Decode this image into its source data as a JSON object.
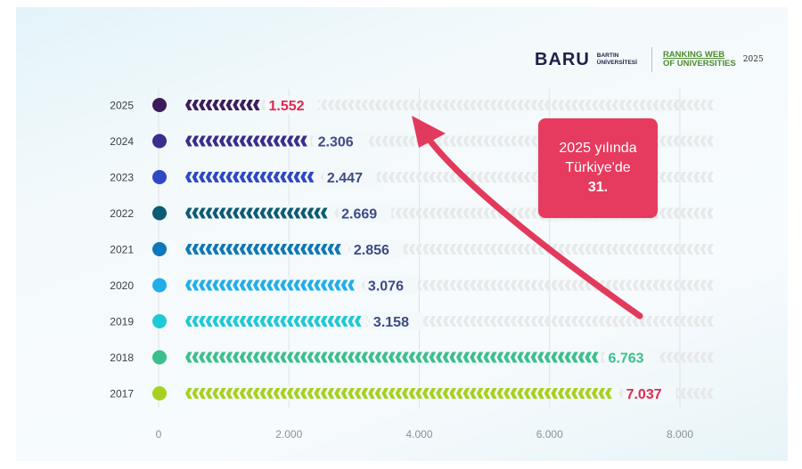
{
  "brand": {
    "name": "BARU",
    "university_line1": "BARTIN",
    "university_line2": "ÜNİVERSİTESİ",
    "ranking_line1": "RANKING WEB",
    "ranking_line2": "OF UNIVERSITIES",
    "ranking_year": "2025"
  },
  "callout": {
    "line1": "2025 yılında",
    "line2": "Türkiye'de",
    "line3": "31."
  },
  "colors": {
    "track": "#e7e9ea",
    "arrow": "#e23a5c",
    "value_dark": "#3e4a84",
    "value_highlight": "#e0294f"
  },
  "chart_data": {
    "type": "bar",
    "orientation": "horizontal",
    "categories": [
      "2025",
      "2024",
      "2023",
      "2022",
      "2021",
      "2020",
      "2019",
      "2018",
      "2017"
    ],
    "values": [
      1552,
      2306,
      2447,
      2669,
      2856,
      3076,
      3158,
      6763,
      7037
    ],
    "value_labels": [
      "1.552",
      "2.306",
      "2.447",
      "2.669",
      "2.856",
      "3.076",
      "3.158",
      "6.763",
      "7.037"
    ],
    "bar_colors": [
      "#3b1d5e",
      "#3a2d8c",
      "#2f48c4",
      "#0d5b73",
      "#0e78b8",
      "#21aee8",
      "#1ec9d4",
      "#3cbf8c",
      "#a6d11d"
    ],
    "value_colors": [
      "#e0294f",
      "#3e4a84",
      "#3e4a84",
      "#3e4a84",
      "#3e4a84",
      "#3e4a84",
      "#3e4a84",
      "#3cbf8c",
      "#e0294f"
    ],
    "x_ticks": [
      0,
      2000,
      4000,
      6000,
      8000
    ],
    "x_tick_labels": [
      "0",
      "2.000",
      "4.000",
      "6.000",
      "8.000"
    ],
    "xlim": [
      0,
      8000
    ],
    "grid": "vertical",
    "title": "",
    "xlabel": "",
    "ylabel": ""
  }
}
